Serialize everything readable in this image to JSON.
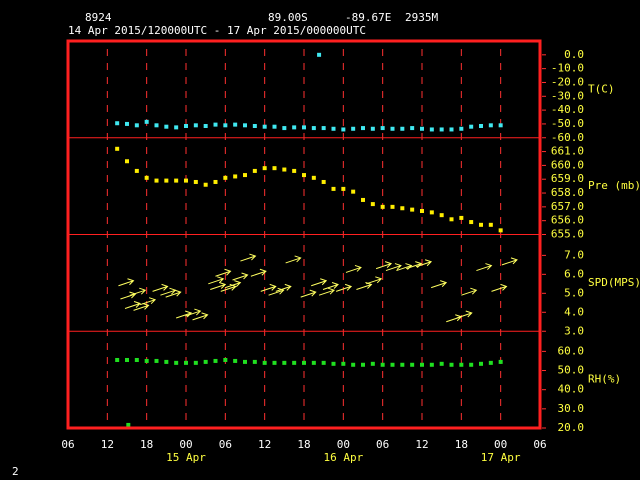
{
  "chart_data": {
    "type": "multi-panel",
    "station": "8924",
    "latitude": "89.00S",
    "longitude": "-89.67E",
    "elevation": "2935M",
    "title": "14 Apr 2015/120000UTC - 17 Apr 2015/000000UTC",
    "page_number": "2",
    "xlim": [
      0,
      72
    ],
    "xticks": [
      {
        "value": 0,
        "label": "06"
      },
      {
        "value": 6,
        "label": "12"
      },
      {
        "value": 12,
        "label": "18"
      },
      {
        "value": 18,
        "label": "00"
      },
      {
        "value": 24,
        "label": "06"
      },
      {
        "value": 30,
        "label": "12"
      },
      {
        "value": 36,
        "label": "18"
      },
      {
        "value": 42,
        "label": "00"
      },
      {
        "value": 48,
        "label": "06"
      },
      {
        "value": 54,
        "label": "12"
      },
      {
        "value": 60,
        "label": "18"
      },
      {
        "value": 66,
        "label": "00"
      },
      {
        "value": 72,
        "label": "06"
      }
    ],
    "date_labels": [
      {
        "value": 18,
        "label": "15 Apr"
      },
      {
        "value": 42,
        "label": "16 Apr"
      },
      {
        "value": 66,
        "label": "17 Apr"
      }
    ],
    "panels": [
      {
        "type": "scatter",
        "label": "T(C)",
        "color": "#40e8f0",
        "ylim": [
          -60,
          10
        ],
        "yticks": [
          {
            "value": 0,
            "label": "0.0"
          },
          {
            "value": -10,
            "label": "-10.0"
          },
          {
            "value": -20,
            "label": "-20.0"
          },
          {
            "value": -30,
            "label": "-30.0"
          },
          {
            "value": -40,
            "label": "-40.0"
          },
          {
            "value": -50,
            "label": "-50.0"
          },
          {
            "value": -60,
            "label": "-60.0"
          }
        ],
        "x": [
          7.5,
          9,
          10.5,
          12,
          13.5,
          15,
          16.5,
          18,
          19.5,
          21,
          22.5,
          24,
          25.5,
          27,
          28.5,
          30,
          31.5,
          33,
          34.5,
          36,
          37.5,
          39,
          40.5,
          42,
          43.5,
          45,
          46.5,
          48,
          49.5,
          51,
          52.5,
          54,
          55.5,
          57,
          58.5,
          60,
          61.5,
          63,
          64.5,
          66
        ],
        "values": [
          -49.5,
          -50.0,
          -51.0,
          -48.5,
          -51.0,
          -52.0,
          -52.5,
          -51.5,
          -51.0,
          -51.5,
          -50.5,
          -51.0,
          -50.5,
          -51.0,
          -51.5,
          -52.0,
          -52.0,
          -53.0,
          -52.5,
          -52.5,
          -53.0,
          -53.0,
          -53.5,
          -54.0,
          -53.5,
          -53.0,
          -53.5,
          -53.0,
          -53.5,
          -53.5,
          -53.0,
          -53.5,
          -54.0,
          -54.0,
          -54.0,
          -53.5,
          -52.0,
          -51.5,
          -51.0,
          -51.0
        ],
        "extra_x": [
          38.3
        ],
        "extra_values": [
          0
        ]
      },
      {
        "type": "scatter",
        "label": "Pre (mb)",
        "color": "#ffee00",
        "ylim": [
          655,
          662
        ],
        "yticks": [
          {
            "value": 661,
            "label": "661.0"
          },
          {
            "value": 660,
            "label": "660.0"
          },
          {
            "value": 659,
            "label": "659.0"
          },
          {
            "value": 658,
            "label": "658.0"
          },
          {
            "value": 657,
            "label": "657.0"
          },
          {
            "value": 656,
            "label": "656.0"
          },
          {
            "value": 655,
            "label": "655.0"
          }
        ],
        "x": [
          7.5,
          9,
          10.5,
          12,
          13.5,
          15,
          16.5,
          18,
          19.5,
          21,
          22.5,
          24,
          25.5,
          27,
          28.5,
          30,
          31.5,
          33,
          34.5,
          36,
          37.5,
          39,
          40.5,
          42,
          43.5,
          45,
          46.5,
          48,
          49.5,
          51,
          52.5,
          54,
          55.5,
          57,
          58.5,
          60,
          61.5,
          63,
          64.5,
          66
        ],
        "values": [
          661.2,
          660.3,
          659.6,
          659.1,
          658.9,
          658.9,
          658.9,
          658.9,
          658.8,
          658.6,
          658.8,
          659.1,
          659.2,
          659.3,
          659.6,
          659.8,
          659.8,
          659.7,
          659.6,
          659.3,
          659.1,
          658.8,
          658.3,
          658.3,
          658.1,
          657.5,
          657.2,
          657.0,
          657.0,
          656.9,
          656.8,
          656.7,
          656.6,
          656.4,
          656.1,
          656.2,
          655.9,
          655.7,
          655.7,
          655.3
        ]
      },
      {
        "type": "arrow",
        "label": "SPD(MPS)",
        "color": "#ffff60",
        "ylim": [
          3,
          8.1
        ],
        "yticks": [
          {
            "value": 7,
            "label": "7.0"
          },
          {
            "value": 6,
            "label": "6.0"
          },
          {
            "value": 5,
            "label": "5.0"
          },
          {
            "value": 4,
            "label": "4.0"
          },
          {
            "value": 3,
            "label": "3.0"
          }
        ],
        "x": [
          7.7,
          8.0,
          8.7,
          9.5,
          10.0,
          11.0,
          12.9,
          14.1,
          14.9,
          16.5,
          17.9,
          19.0,
          21.4,
          21.7,
          22.5,
          23.3,
          24.0,
          25.1,
          26.3,
          27.9,
          29.4,
          30.6,
          31.7,
          33.2,
          35.5,
          37.1,
          38.3,
          38.9,
          40.9,
          42.4,
          44.0,
          45.5,
          47.0,
          48.5,
          50.1,
          51.6,
          53.1,
          55.4,
          57.7,
          59.3,
          60.0,
          62.3,
          64.6,
          66.2
        ],
        "values": [
          5.4,
          4.7,
          4.2,
          4.9,
          4.1,
          4.4,
          5.1,
          4.9,
          4.8,
          3.7,
          3.8,
          3.6,
          5.5,
          5.2,
          5.9,
          5.1,
          5.3,
          5.7,
          6.7,
          5.9,
          5.1,
          4.9,
          5.1,
          6.6,
          4.8,
          5.4,
          4.9,
          5.2,
          5.1,
          6.1,
          5.2,
          5.5,
          6.3,
          6.2,
          6.2,
          6.3,
          6.4,
          5.3,
          3.5,
          3.7,
          4.9,
          6.2,
          5.1,
          6.5
        ]
      },
      {
        "type": "scatter",
        "label": "RH(%)",
        "color": "#20e020",
        "ylim": [
          20,
          70.5
        ],
        "yticks": [
          {
            "value": 60,
            "label": "60.0"
          },
          {
            "value": 50,
            "label": "50.0"
          },
          {
            "value": 40,
            "label": "40.0"
          },
          {
            "value": 30,
            "label": "30.0"
          },
          {
            "value": 20,
            "label": "20.0"
          }
        ],
        "x": [
          7.5,
          9,
          10.5,
          12,
          13.5,
          15,
          16.5,
          18,
          19.5,
          21,
          22.5,
          24,
          25.5,
          27,
          28.5,
          30,
          31.5,
          33,
          34.5,
          36,
          37.5,
          39,
          40.5,
          42,
          43.5,
          45,
          46.5,
          48,
          49.5,
          51,
          52.5,
          54,
          55.5,
          57,
          58.5,
          60,
          61.5,
          63,
          64.5,
          66
        ],
        "values": [
          55.5,
          55.5,
          55.5,
          55.0,
          55.0,
          54.5,
          54.0,
          54.0,
          54.0,
          54.5,
          55.0,
          55.5,
          55.0,
          54.5,
          54.5,
          54.0,
          54.0,
          54.0,
          54.0,
          54.0,
          54.0,
          54.0,
          53.5,
          53.5,
          53.0,
          53.0,
          53.5,
          53.0,
          53.0,
          53.0,
          53.0,
          53.0,
          53.0,
          53.5,
          53.0,
          53.0,
          53.0,
          53.5,
          54.0,
          54.5
        ],
        "extra_x": [
          9.2
        ],
        "extra_values": [
          21.6
        ]
      }
    ]
  }
}
